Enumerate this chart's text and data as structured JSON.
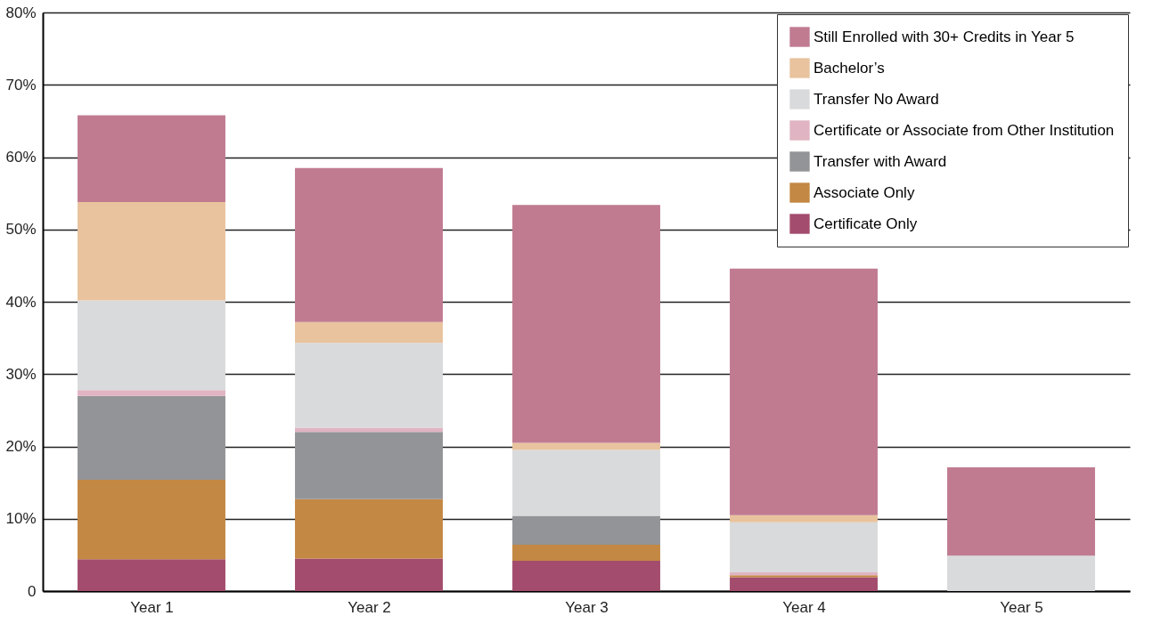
{
  "chart_data": {
    "type": "bar",
    "stacked": true,
    "categories": [
      "Year 1",
      "Year 2",
      "Year 3",
      "Year 4",
      "Year 5"
    ],
    "series": [
      {
        "name": "Certificate Only",
        "color": "#a34c6d",
        "values": [
          4.4,
          4.5,
          4.2,
          1.9,
          0
        ]
      },
      {
        "name": "Associate Only",
        "color": "#c38843",
        "values": [
          11.0,
          8.2,
          2.2,
          0.3,
          0
        ]
      },
      {
        "name": "Transfer with Award",
        "color": "#939497",
        "values": [
          11.6,
          9.3,
          4.0,
          0,
          0
        ]
      },
      {
        "name": "Certificate or Associate from Other Institution",
        "color": "#e0b4c2",
        "values": [
          0.8,
          0.6,
          null,
          0.4,
          0
        ]
      },
      {
        "name": "Transfer No Award",
        "color": "#d9dadc",
        "values": [
          12.4,
          11.7,
          9.1,
          6.9,
          4.9
        ]
      },
      {
        "name": "Bachelor’s",
        "color": "#e8c39e",
        "values": [
          13.6,
          2.9,
          1.0,
          1.0,
          0
        ]
      },
      {
        "name": "Still Enrolled with 30+ Credits in Year 5",
        "color": "#c07b91",
        "values": [
          12.0,
          21.3,
          32.9,
          34.1,
          12.2
        ]
      }
    ],
    "ylim": [
      0,
      80
    ],
    "yticks": [
      0,
      {
        "value": 10,
        "label": "10%"
      },
      {
        "value": 20,
        "label": "20%"
      },
      {
        "value": 30,
        "label": "30%"
      },
      {
        "value": 40,
        "label": "40%"
      },
      {
        "value": 50,
        "label": "50%"
      },
      {
        "value": 60,
        "label": "60%"
      },
      {
        "value": 70,
        "label": "70%"
      },
      {
        "value": 80,
        "label": "80%"
      }
    ],
    "grid": "y",
    "legend": "top right"
  }
}
